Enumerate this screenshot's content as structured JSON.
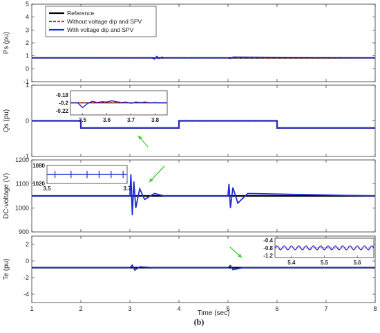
{
  "caption": "(b)",
  "colors": {
    "reference": "#000000",
    "without": "#e8231a",
    "with": "#1f2bd9",
    "arrow": "#3ccc2a"
  },
  "chart_data": [
    {
      "type": "line",
      "ylabel": "Ps (pu)",
      "ylim": [
        -1,
        5
      ],
      "yticks": [
        -1,
        0,
        1,
        2,
        3,
        4,
        5
      ],
      "xlim": [
        1,
        8
      ],
      "grid": false,
      "legend": {
        "placement": "top-left",
        "entries": [
          "Reference",
          "Without voltage dip and SPV",
          "With voltage dip and SPV"
        ]
      },
      "series": [
        {
          "name": "Reference",
          "x": [
            1,
            8
          ],
          "y": [
            0.85,
            0.85
          ]
        },
        {
          "name": "Without voltage dip and SPV",
          "x": [
            1,
            8
          ],
          "y": [
            0.85,
            0.85
          ]
        },
        {
          "name": "With voltage dip and SPV",
          "x": [
            1,
            3.45,
            3.5,
            3.55,
            3.6,
            3.65,
            3.7,
            5.0,
            5.05,
            5.1,
            8
          ],
          "y": [
            0.85,
            0.85,
            0.75,
            0.95,
            0.8,
            0.9,
            0.85,
            0.85,
            0.8,
            0.9,
            0.85
          ]
        }
      ]
    },
    {
      "type": "line",
      "ylabel": "Qs (pu)",
      "ylim": [
        -1,
        1
      ],
      "yticks": [
        -1,
        0,
        1
      ],
      "xlim": [
        1,
        8
      ],
      "grid": false,
      "series": [
        {
          "name": "Reference",
          "x": [
            1,
            2,
            2,
            4,
            4,
            6,
            6,
            8
          ],
          "y": [
            0,
            0,
            -0.2,
            -0.2,
            0,
            0,
            -0.2,
            -0.2
          ]
        },
        {
          "name": "Without voltage dip and SPV",
          "x": [
            1,
            2,
            2,
            4,
            4,
            6,
            6,
            8
          ],
          "y": [
            0,
            0,
            -0.2,
            -0.2,
            0,
            0,
            -0.2,
            -0.2
          ]
        },
        {
          "name": "With voltage dip and SPV",
          "x": [
            1,
            2,
            2,
            4,
            4,
            6,
            6,
            8
          ],
          "y": [
            0,
            0,
            -0.2,
            -0.2,
            0,
            0,
            -0.2,
            -0.2
          ]
        }
      ],
      "inset": {
        "xticks": [
          "3.5",
          "3.6",
          "3.7",
          "3.8"
        ],
        "yticks": [
          "-0.18",
          "-0.2",
          "-0.22"
        ],
        "xlim": [
          3.45,
          3.85
        ],
        "ylim": [
          -0.23,
          -0.17
        ]
      }
    },
    {
      "type": "line",
      "ylabel": "DC-voltage (V)",
      "ylim": [
        900,
        1200
      ],
      "yticks": [
        900,
        1000,
        1100,
        1200
      ],
      "xlim": [
        1,
        8
      ],
      "grid": false,
      "series": [
        {
          "name": "Reference",
          "x": [
            1,
            8
          ],
          "y": [
            1050,
            1050
          ]
        },
        {
          "name": "With voltage dip and SPV",
          "x": [
            1,
            3.0,
            3.02,
            3.05,
            3.08,
            3.12,
            3.2,
            3.3,
            3.5,
            3.7,
            5.0,
            5.02,
            5.05,
            5.1,
            5.2,
            5.4,
            8
          ],
          "y": [
            1050,
            1050,
            1140,
            970,
            1110,
            1000,
            1080,
            1035,
            1060,
            1050,
            1050,
            1100,
            1000,
            1085,
            1020,
            1060,
            1050
          ]
        }
      ],
      "inset": {
        "xticks": [
          "3.5",
          "3.7"
        ],
        "yticks": [
          "1080",
          "1020"
        ],
        "xlim": [
          3.5,
          3.7
        ],
        "ylim": [
          1020,
          1080
        ]
      }
    },
    {
      "type": "line",
      "ylabel": "Te (pu)",
      "xlabel": "Time (sec)",
      "ylim": [
        -5,
        3
      ],
      "yticks": [
        -4,
        -2,
        0,
        2
      ],
      "xlim": [
        1,
        8
      ],
      "xticks": [
        1,
        2,
        3,
        4,
        5,
        6,
        7,
        8
      ],
      "grid": false,
      "series": [
        {
          "name": "Reference",
          "x": [
            1,
            8
          ],
          "y": [
            -0.8,
            -0.8
          ]
        },
        {
          "name": "With voltage dip and SPV",
          "x": [
            1,
            3.0,
            3.05,
            3.1,
            3.2,
            3.5,
            5.0,
            5.05,
            5.1,
            5.3,
            8
          ],
          "y": [
            -0.8,
            -0.8,
            -0.5,
            -1.1,
            -0.7,
            -0.8,
            -0.8,
            -0.55,
            -1.05,
            -0.8,
            -0.8
          ]
        }
      ],
      "inset": {
        "xticks": [
          "5.4",
          "5.5",
          "5.6"
        ],
        "yticks": [
          "-0.4",
          "-0.8",
          "-1.2"
        ],
        "xlim": [
          5.35,
          5.65
        ],
        "ylim": [
          -1.3,
          -0.3
        ]
      }
    }
  ]
}
